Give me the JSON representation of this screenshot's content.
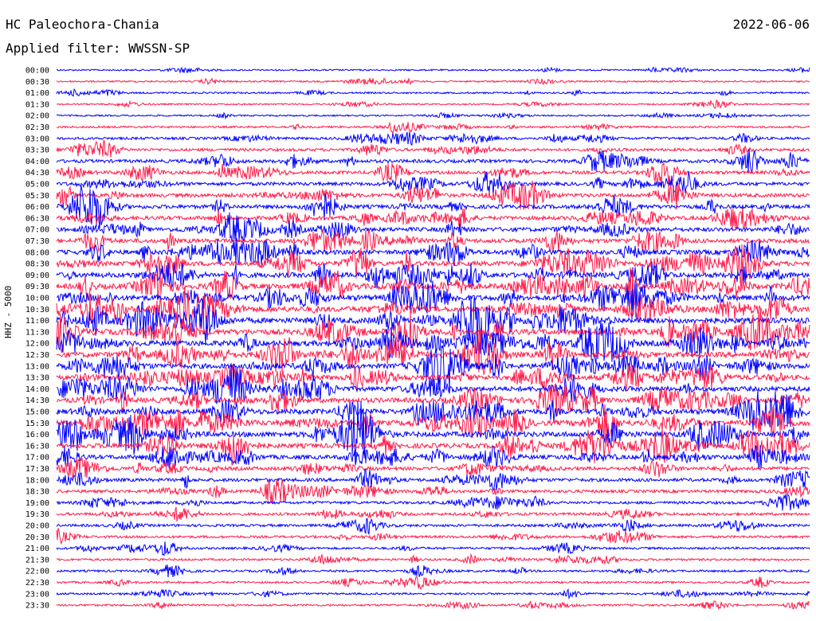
{
  "header": {
    "station": "HC Paleochora-Chania",
    "date": "2022-06-06",
    "filter": "Applied filter: WWSSN-SP"
  },
  "chart_data": {
    "type": "line",
    "ylabel": "HHZ - 5000",
    "row_labels": [
      "00:00",
      "00:30",
      "01:00",
      "01:30",
      "02:00",
      "02:30",
      "03:00",
      "03:30",
      "04:00",
      "04:30",
      "05:00",
      "05:30",
      "06:00",
      "06:30",
      "07:00",
      "07:30",
      "08:00",
      "08:30",
      "09:00",
      "09:30",
      "10:00",
      "10:30",
      "11:00",
      "11:30",
      "12:00",
      "12:30",
      "13:00",
      "13:30",
      "14:00",
      "14:30",
      "15:00",
      "15:30",
      "16:00",
      "16:30",
      "17:00",
      "17:30",
      "18:00",
      "18:30",
      "19:00",
      "19:30",
      "20:00",
      "20:30",
      "21:00",
      "21:30",
      "22:00",
      "22:30",
      "23:00",
      "23:30"
    ],
    "series_colors": [
      "#0000ff",
      "#ff1b4a"
    ],
    "activity": [
      0.05,
      0.06,
      0.08,
      0.04,
      0.05,
      0.12,
      0.22,
      0.28,
      0.35,
      0.35,
      0.38,
      0.42,
      0.45,
      0.45,
      0.5,
      0.52,
      0.58,
      0.6,
      0.65,
      0.7,
      0.72,
      0.72,
      0.75,
      0.75,
      0.72,
      0.7,
      0.65,
      0.62,
      0.62,
      0.62,
      0.68,
      0.68,
      0.7,
      0.62,
      0.5,
      0.4,
      0.35,
      0.3,
      0.25,
      0.25,
      0.22,
      0.2,
      0.16,
      0.16,
      0.14,
      0.12,
      0.12,
      0.12
    ]
  }
}
